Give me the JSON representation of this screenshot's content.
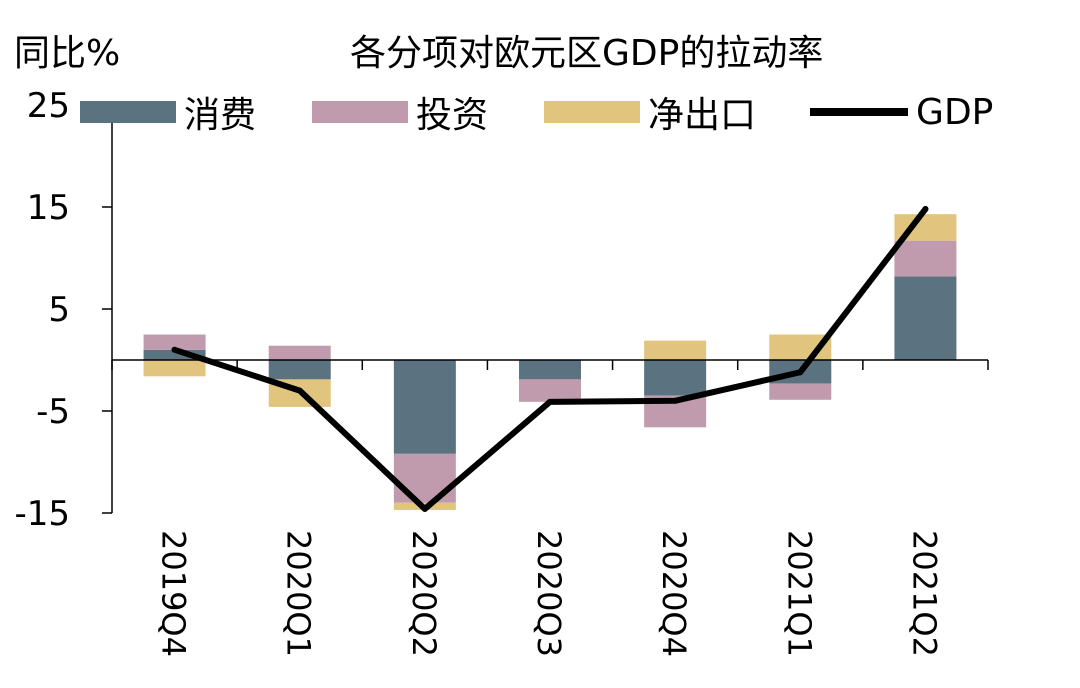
{
  "chart_data": {
    "type": "bar",
    "title": "各分项对欧元区GDP的拉动率",
    "ylabel": "同比%",
    "categories": [
      "2019Q4",
      "2020Q1",
      "2020Q2",
      "2020Q3",
      "2020Q4",
      "2021Q1",
      "2021Q2"
    ],
    "ylim": [
      -15,
      25
    ],
    "yticks": [
      25,
      15,
      5,
      -5,
      -15
    ],
    "ytick_labels": [
      "25",
      "15",
      "5",
      "-5",
      "-15"
    ],
    "stacked": true,
    "series": [
      {
        "name": "消费",
        "color": "#5b7380",
        "values": [
          1.0,
          -1.9,
          -9.2,
          -1.9,
          -3.5,
          -2.3,
          8.2
        ]
      },
      {
        "name": "投资",
        "color": "#c09bae",
        "values": [
          1.5,
          1.4,
          -4.8,
          -2.2,
          -3.1,
          -1.6,
          3.5
        ]
      },
      {
        "name": "净出口",
        "color": "#e1c57e",
        "values": [
          -1.6,
          -2.7,
          -0.7,
          0.0,
          1.9,
          2.5,
          2.6
        ]
      }
    ],
    "line_series": {
      "name": "GDP",
      "color": "#000000",
      "values": [
        1.0,
        -3.0,
        -14.6,
        -4.1,
        -4.0,
        -1.2,
        14.8
      ]
    },
    "legend_position": "top",
    "grid": false
  }
}
